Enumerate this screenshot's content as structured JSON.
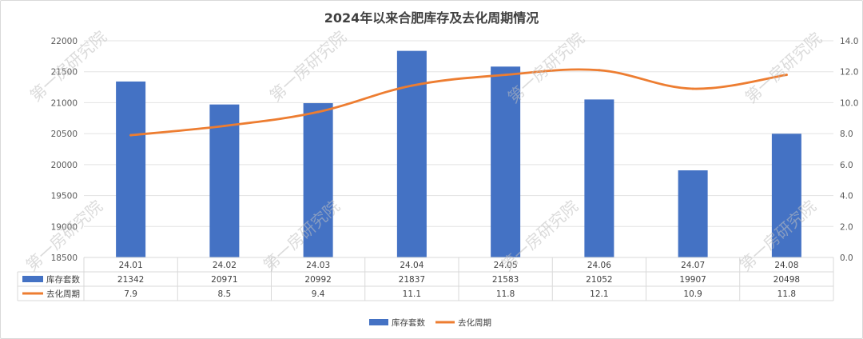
{
  "chart_data": {
    "type": "bar",
    "title": "2024年以来合肥库存及去化周期情况",
    "categories": [
      "24.01",
      "24.02",
      "24.03",
      "24.04",
      "24.05",
      "24.06",
      "24.07",
      "24.08"
    ],
    "series": [
      {
        "name": "库存套数",
        "type": "bar",
        "axis": "left",
        "color": "#4472C4",
        "values": [
          21342,
          20971,
          20992,
          21837,
          21583,
          21052,
          19907,
          20498
        ]
      },
      {
        "name": "去化周期",
        "type": "line",
        "axis": "right",
        "color": "#ED7D31",
        "values": [
          7.9,
          8.5,
          9.4,
          11.1,
          11.8,
          12.1,
          10.9,
          11.8
        ]
      }
    ],
    "y_left": {
      "min": 18500,
      "max": 22000,
      "step": 500,
      "ticks": [
        "18500",
        "19000",
        "19500",
        "20000",
        "20500",
        "21000",
        "21500",
        "22000"
      ]
    },
    "y_right": {
      "min": 0,
      "max": 14,
      "step": 2,
      "ticks": [
        "0.0",
        "2.0",
        "4.0",
        "6.0",
        "8.0",
        "10.0",
        "12.0",
        "14.0"
      ]
    },
    "table_rows": [
      {
        "label": "库存套数",
        "values": [
          "21342",
          "20971",
          "20992",
          "21837",
          "21583",
          "21052",
          "19907",
          "20498"
        ]
      },
      {
        "label": "去化周期",
        "values": [
          "7.9",
          "8.5",
          "9.4",
          "11.1",
          "11.8",
          "12.1",
          "10.9",
          "11.8"
        ]
      }
    ],
    "legend": [
      "库存套数",
      "去化周期"
    ],
    "legend_position": "bottom",
    "grid": true,
    "watermark": "第一房研究院"
  }
}
